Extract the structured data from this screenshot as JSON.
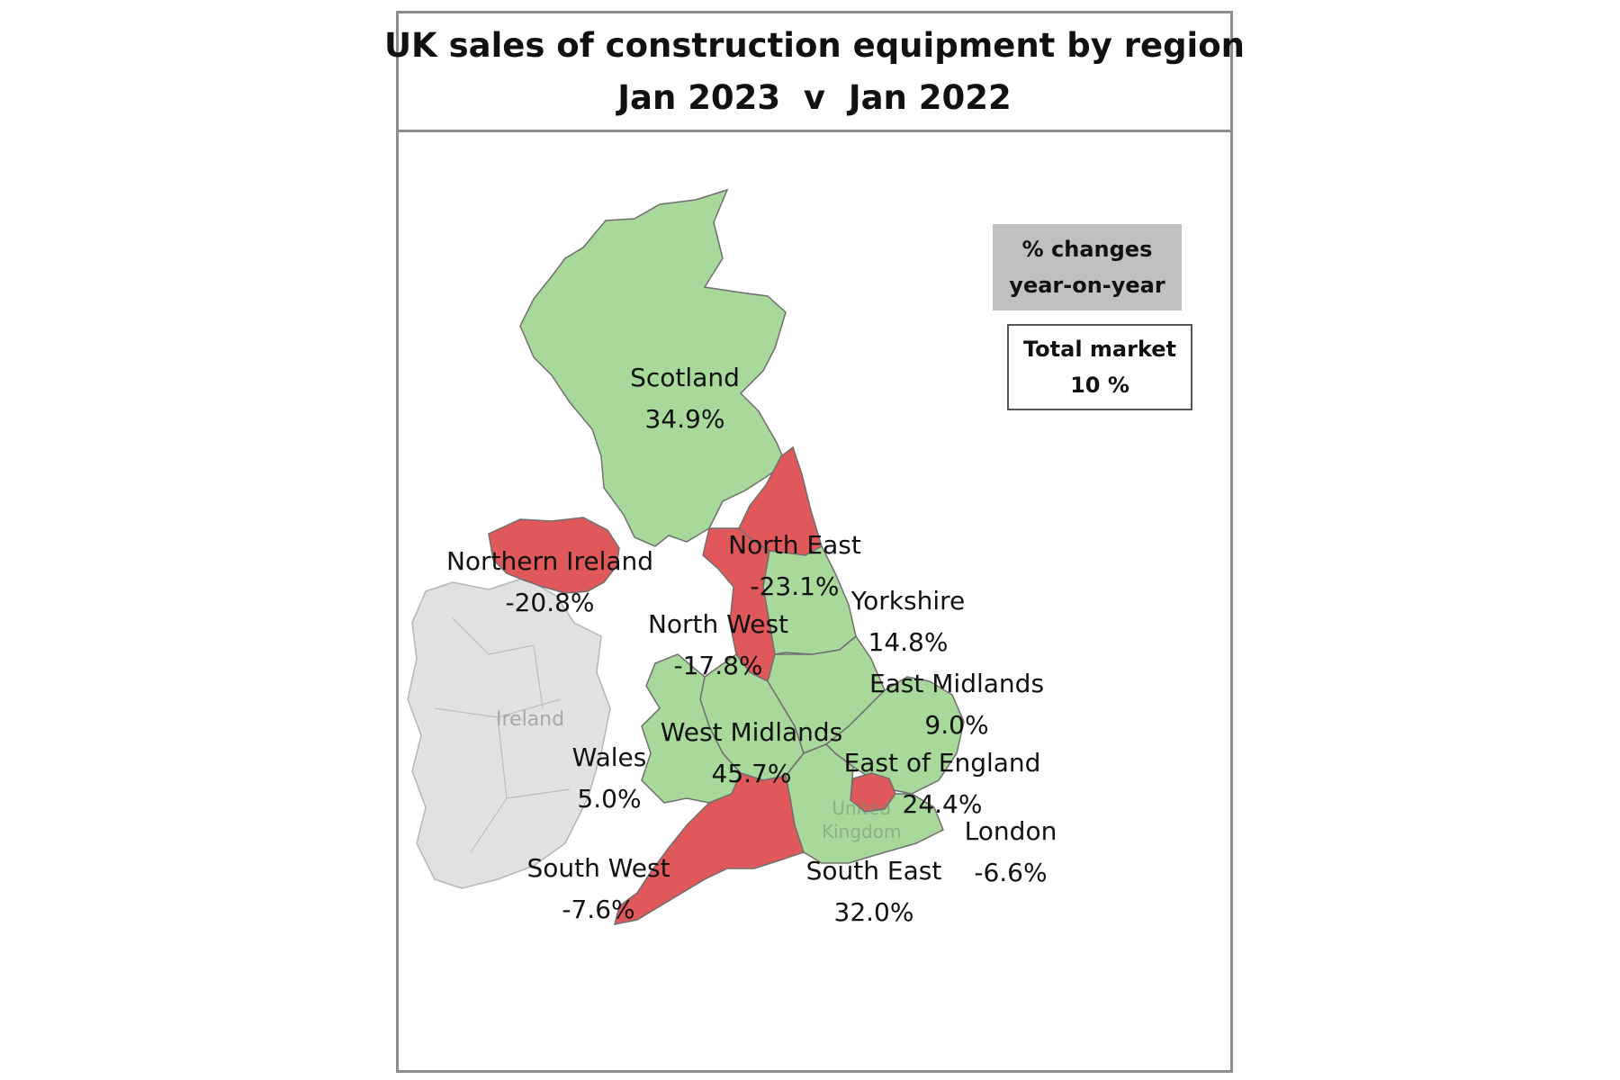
{
  "title": {
    "line1": "UK sales of construction equipment by region",
    "line2": "Jan 2023  v  Jan 2022"
  },
  "legend_note": {
    "line1": "% changes",
    "line2": "year-on-year"
  },
  "total_market": {
    "label": "Total market",
    "value": "10 %"
  },
  "colors": {
    "positive": "#a8d89a",
    "negative": "#e0585a",
    "ireland": "#e2e2e2",
    "border": "#6f6f6f"
  },
  "map_labels": {
    "ireland": "Ireland",
    "uk_watermark_line1": "United",
    "uk_watermark_line2": "Kingdom"
  },
  "regions": [
    {
      "name": "Scotland",
      "change": "34.9%",
      "status": "positive"
    },
    {
      "name": "Northern Ireland",
      "change": "-20.8%",
      "status": "negative"
    },
    {
      "name": "North East",
      "change": "-23.1%",
      "status": "negative"
    },
    {
      "name": "North West",
      "change": "-17.8%",
      "status": "negative"
    },
    {
      "name": "Yorkshire",
      "change": "14.8%",
      "status": "positive"
    },
    {
      "name": "East Midlands",
      "change": "9.0%",
      "status": "positive"
    },
    {
      "name": "West Midlands",
      "change": "45.7%",
      "status": "positive"
    },
    {
      "name": "Wales",
      "change": "5.0%",
      "status": "positive"
    },
    {
      "name": "East of England",
      "change": "24.4%",
      "status": "positive"
    },
    {
      "name": "London",
      "change": "-6.6%",
      "status": "negative"
    },
    {
      "name": "South West",
      "change": "-7.6%",
      "status": "negative"
    },
    {
      "name": "South East",
      "change": "32.0%",
      "status": "positive"
    }
  ]
}
